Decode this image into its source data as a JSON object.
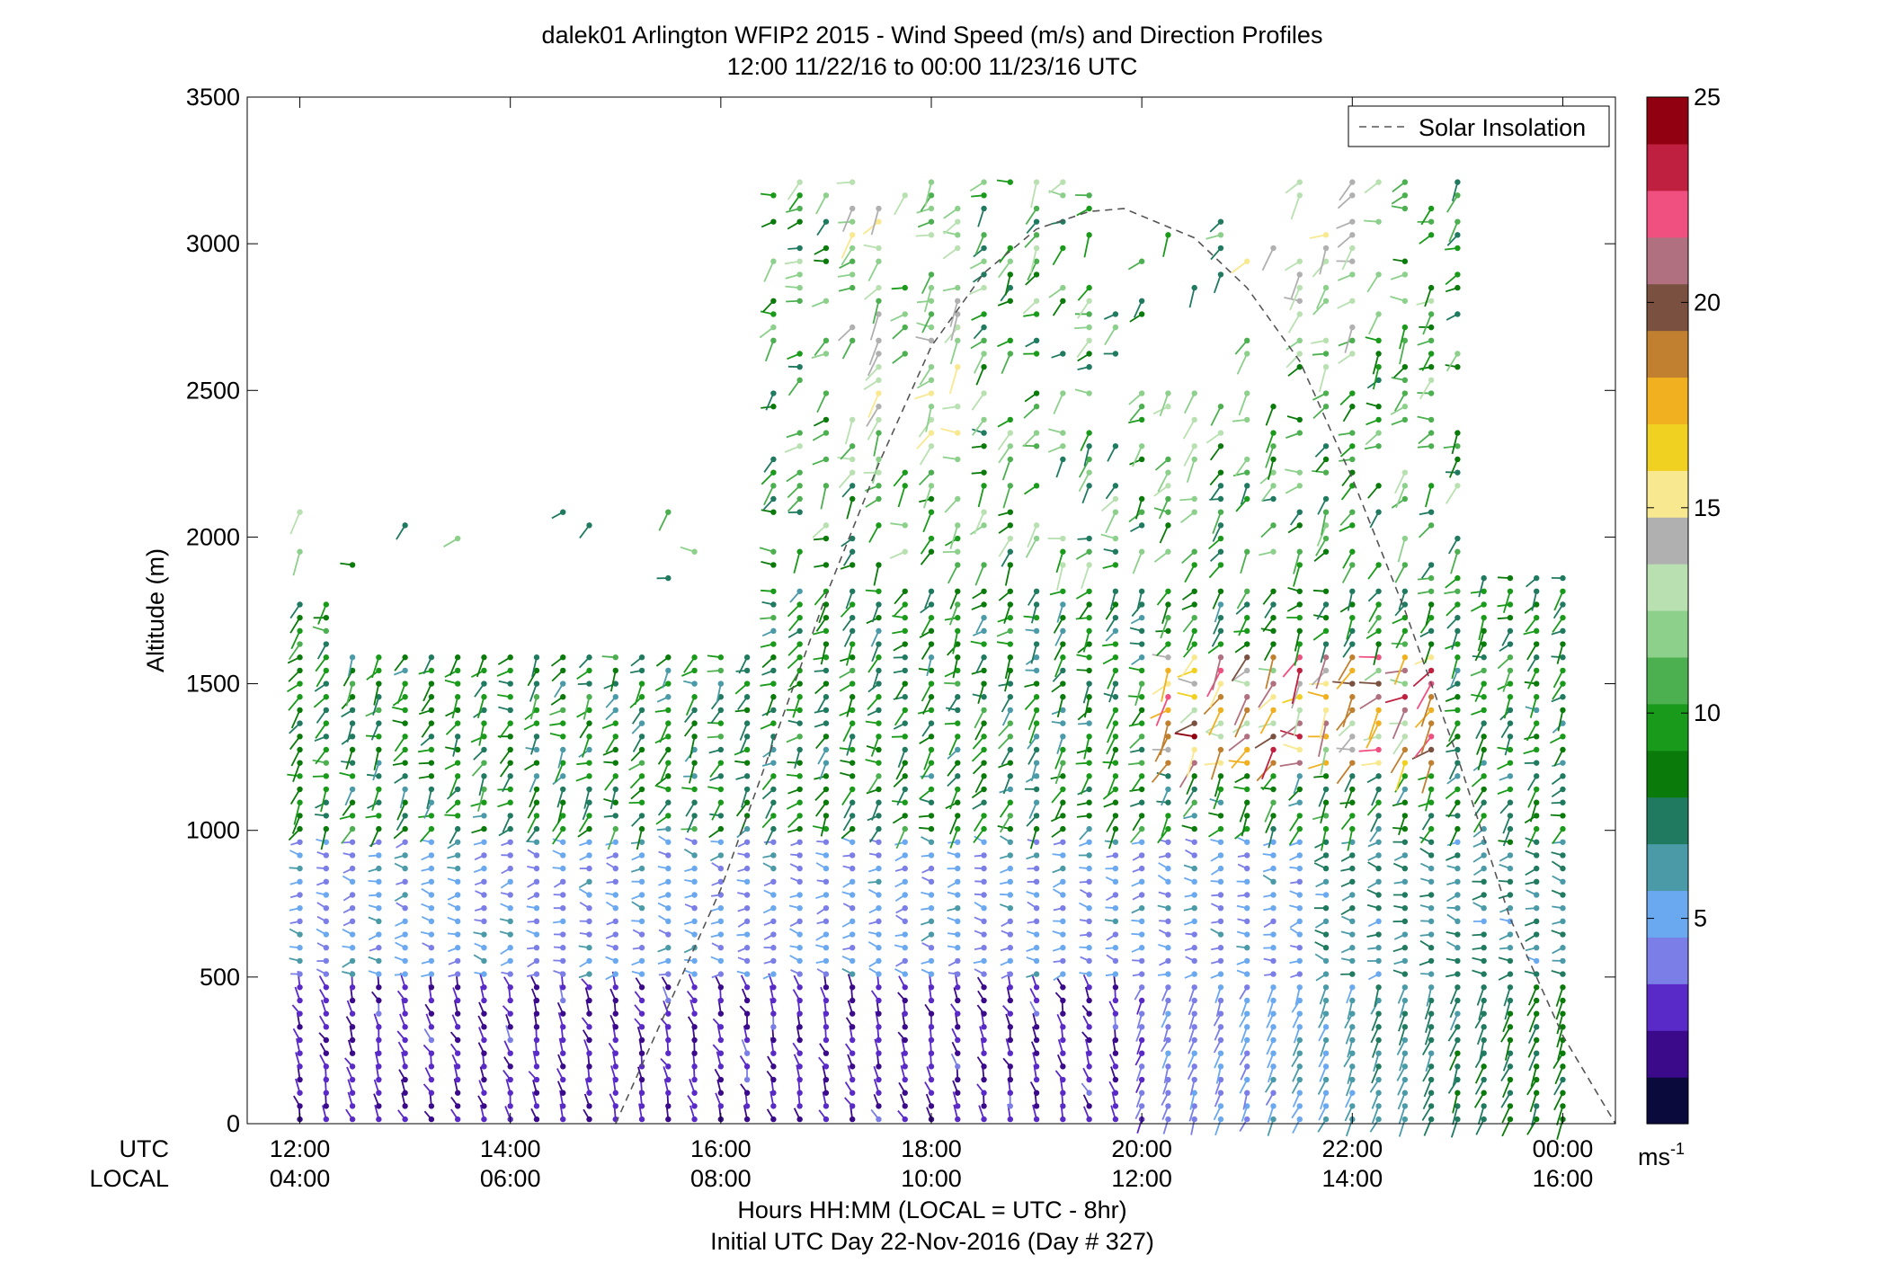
{
  "chart_data": {
    "type": "scatter",
    "title": "dalek01 Arlington WFIP2 2015 - Wind Speed (m/s) and Direction Profiles",
    "subtitle": "12:00 11/22/16 to 00:00 11/23/16  UTC",
    "ylabel": "Altitude (m)",
    "ylim": [
      0,
      3500
    ],
    "yticks": [
      "0",
      "500",
      "1000",
      "1500",
      "2000",
      "2500",
      "3000",
      "3500"
    ],
    "xlim_utc_hours": [
      11.5,
      24.5
    ],
    "utc_row_label": "UTC",
    "local_row_label": "LOCAL",
    "utc_ticks": [
      "12:00",
      "14:00",
      "16:00",
      "18:00",
      "20:00",
      "22:00",
      "00:00"
    ],
    "local_ticks": [
      "04:00",
      "06:00",
      "08:00",
      "10:00",
      "12:00",
      "14:00",
      "16:00"
    ],
    "xlabel_line1": "Hours HH:MM  (LOCAL = UTC - 8hr)",
    "xlabel_line2": "Initial UTC Day 22-Nov-2016 (Day # 327)",
    "legend": {
      "label": "Solar Insolation",
      "placement": "top-right"
    },
    "colorbar": {
      "range": [
        0,
        25
      ],
      "ticks": [
        "5",
        "10",
        "15",
        "20",
        "25"
      ],
      "unit_base": "ms",
      "unit_exp": "-1",
      "colors": [
        "#0a0a3c",
        "#3a0a8a",
        "#5a2ac8",
        "#7a7ee6",
        "#6aa8f0",
        "#4a9aa8",
        "#207a60",
        "#0a7a0a",
        "#1a9a1a",
        "#4caf50",
        "#8cd08c",
        "#b8e0b0",
        "#b0b0b0",
        "#f8e890",
        "#f0d020",
        "#f0b020",
        "#c08030",
        "#7a5040",
        "#b07080",
        "#f05080",
        "#c02040",
        "#900010"
      ]
    },
    "solar_insolation_curve": {
      "hours_utc": [
        11.5,
        13.0,
        14.0,
        15.0,
        16.0,
        16.5,
        17.0,
        17.5,
        18.0,
        18.5,
        19.0,
        19.5,
        19.83,
        20.5,
        21.0,
        21.5,
        22.0,
        22.5,
        23.0,
        23.5,
        24.0,
        24.5
      ],
      "altitude_equiv_m": [
        null,
        null,
        null,
        0,
        800,
        1300,
        1800,
        2250,
        2650,
        2900,
        3050,
        3110,
        3120,
        3020,
        2850,
        2600,
        2200,
        1750,
        1250,
        700,
        300,
        0
      ]
    },
    "wind_profiles": {
      "time_range_utc": [
        "12:00",
        "00:00"
      ],
      "altitude_range_m": [
        0,
        3250
      ],
      "speed_range_ms": [
        0,
        25
      ],
      "regimes": [
        {
          "layer": "0-500 m",
          "time": "12:00-20:00",
          "speed_ms": "1-3"
        },
        {
          "layer": "0-500 m",
          "time": "20:00-00:00",
          "speed_ms": "3-8"
        },
        {
          "layer": "500-1000 m",
          "time": "12:00-20:00",
          "speed_ms": "3-6"
        },
        {
          "layer": "1000-1800 m",
          "time": "12:00-00:00",
          "speed_ms": "6-11"
        },
        {
          "layer": "1200-1600 m",
          "time": "20:00-23:00",
          "speed_ms": "12-25"
        },
        {
          "layer": "2000-3200 m",
          "time": "16:00-23:00",
          "speed_ms": "7-15"
        }
      ]
    }
  }
}
